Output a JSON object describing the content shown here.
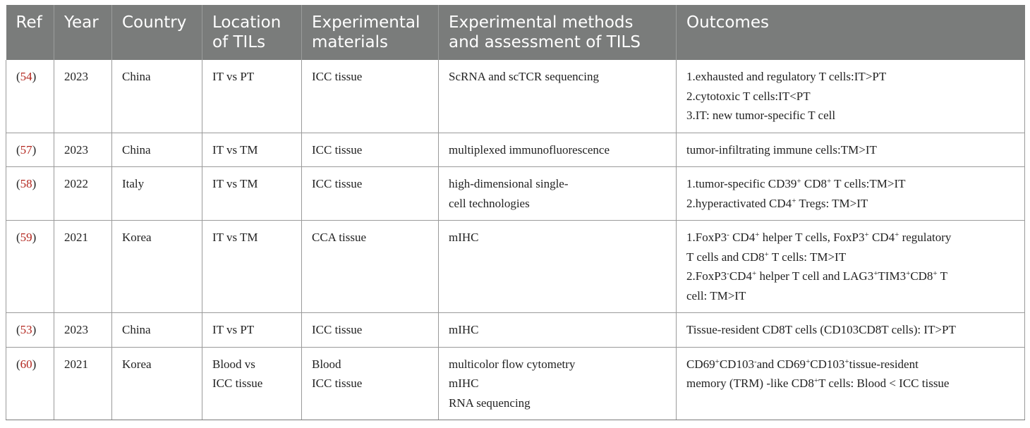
{
  "headers": {
    "ref": "Ref",
    "year": "Year",
    "country": "Country",
    "location": [
      "Location",
      "of TILs"
    ],
    "materials": [
      "Experimental",
      "materials"
    ],
    "methods": [
      "Experimental methods",
      "and assessment of TILS"
    ],
    "outcomes": "Outcomes"
  },
  "rows": [
    {
      "ref": "54",
      "year": "2023",
      "country": "China",
      "location": [
        "IT vs PT"
      ],
      "materials": [
        "ICC tissue"
      ],
      "methods": [
        "ScRNA and scTCR sequencing"
      ],
      "outcomes": [
        "1.exhausted and regulatory T cells:IT>PT",
        "2.cytotoxic T cells:IT<PT",
        "3.IT: new tumor-specific T cell"
      ]
    },
    {
      "ref": "57",
      "year": "2023",
      "country": "China",
      "location": [
        "IT vs TM"
      ],
      "materials": [
        "ICC tissue"
      ],
      "methods": [
        "multiplexed immunofluorescence"
      ],
      "outcomes": [
        "tumor-infiltrating immune cells:TM>IT"
      ]
    },
    {
      "ref": "58",
      "year": "2022",
      "country": "Italy",
      "location": [
        "IT vs TM"
      ],
      "materials": [
        "ICC tissue"
      ],
      "methods": [
        "high-dimensional single-",
        "cell technologies"
      ],
      "outcomes_rich": {
        "l1_a": "1.tumor-specific CD39",
        "l1_sup1": "+",
        "l1_b": " CD8",
        "l1_sup2": "+",
        "l1_c": " T cells:TM>IT",
        "l2_a": "2.hyperactivated CD4",
        "l2_sup1": "+",
        "l2_b": " Tregs: TM>IT"
      }
    },
    {
      "ref": "59",
      "year": "2021",
      "country": "Korea",
      "location": [
        "IT vs TM"
      ],
      "materials": [
        "CCA tissue"
      ],
      "methods": [
        "mIHC"
      ],
      "outcomes_rich": {
        "l1_a": "1.FoxP3",
        "l1_sup1": "-",
        "l1_b": " CD4",
        "l1_sup2": "+",
        "l1_c": " helper T cells, FoxP3",
        "l1_sup3": "+",
        "l1_d": " CD4",
        "l1_sup4": "+",
        "l1_e": " regulatory",
        "l2_a": "T cells and CD8",
        "l2_sup1": "+",
        "l2_b": " T cells: TM>IT",
        "l3_a": "2.FoxP3",
        "l3_sup1": "-",
        "l3_b": "CD4",
        "l3_sup2": "+",
        "l3_c": " helper T cell and LAG3",
        "l3_sup3": "+",
        "l3_d": "TIM3",
        "l3_sup4": "+",
        "l3_e": "CD8",
        "l3_sup5": "+",
        "l3_f": " T",
        "l4_a": "cell: TM>IT"
      }
    },
    {
      "ref": "53",
      "year": "2023",
      "country": "China",
      "location": [
        "IT vs PT"
      ],
      "materials": [
        "ICC tissue"
      ],
      "methods": [
        "mIHC"
      ],
      "outcomes": [
        "Tissue-resident CD8T cells (CD103CD8T cells): IT>PT"
      ]
    },
    {
      "ref": "60",
      "year": "2021",
      "country": "Korea",
      "location": [
        "Blood vs",
        "ICC tissue"
      ],
      "materials": [
        "Blood",
        "ICC tissue"
      ],
      "methods": [
        "multicolor flow cytometry",
        "mIHC",
        "RNA sequencing"
      ],
      "outcomes_rich": {
        "l1_a": "CD69",
        "l1_sup1": "+",
        "l1_b": "CD103",
        "l1_sup2": "-",
        "l1_c": "and CD69",
        "l1_sup3": "+",
        "l1_d": "CD103",
        "l1_sup4": "+",
        "l1_e": "tissue-resident",
        "l2_a": "memory (TRM) -like CD8",
        "l2_sup1": "+",
        "l2_b": "T cells: Blood < ICC tissue"
      }
    }
  ]
}
